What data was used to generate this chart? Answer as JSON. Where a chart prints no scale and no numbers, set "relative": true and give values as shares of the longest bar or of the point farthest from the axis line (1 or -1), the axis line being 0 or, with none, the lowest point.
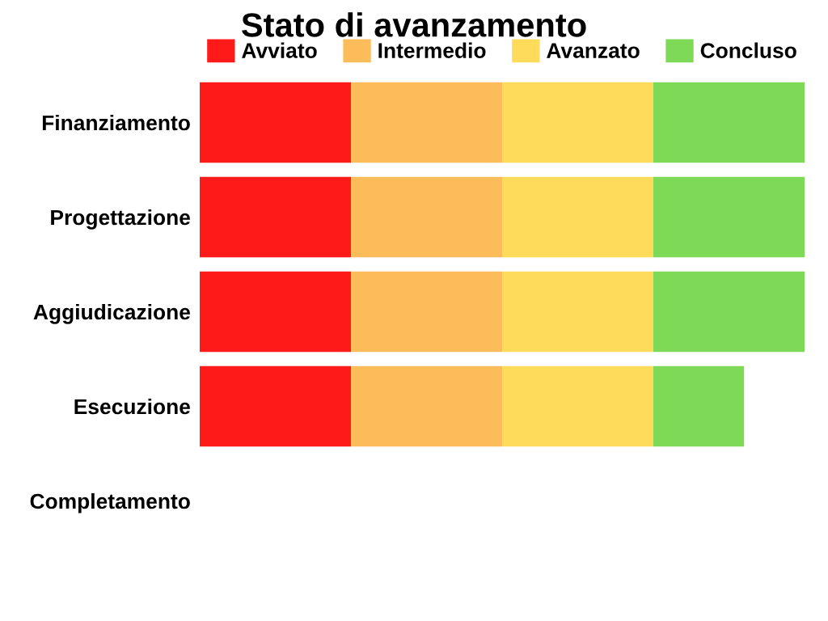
{
  "chart_data": {
    "type": "bar",
    "title": "Stato di avanzamento",
    "orientation": "horizontal",
    "stacked": true,
    "relative": true,
    "categories": [
      "Finanziamento",
      "Progettazione",
      "Aggiudicazione",
      "Esecuzione",
      "Completamento"
    ],
    "series": [
      {
        "name": "Avviato",
        "color": "#ff1a1a",
        "values": [
          0.25,
          0.25,
          0.25,
          0.25,
          null
        ]
      },
      {
        "name": "Intermedio",
        "color": "#fdbc5a",
        "values": [
          0.25,
          0.25,
          0.25,
          0.25,
          null
        ]
      },
      {
        "name": "Avanzato",
        "color": "#ffdb5c",
        "values": [
          0.25,
          0.25,
          0.25,
          0.25,
          null
        ]
      },
      {
        "name": "Concluso",
        "color": "#7ed957",
        "values": [
          0.25,
          0.25,
          0.25,
          0.15,
          null
        ]
      }
    ],
    "legend": "top",
    "grid": false,
    "tick_labels": "y"
  }
}
